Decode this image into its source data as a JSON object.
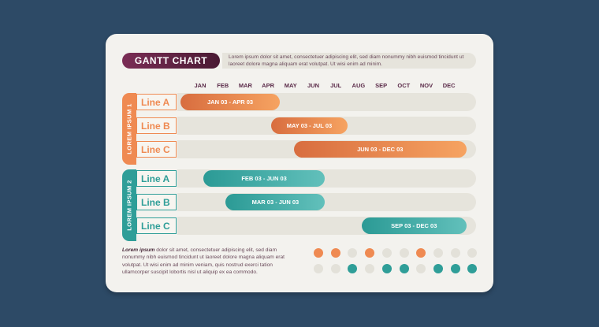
{
  "header": {
    "title": "GANTT CHART",
    "description": "Lorem ipsum dolor sit amet, consectetuer adipiscing elit, sed diam nonummy nibh euismod tincidunt ut laoreet dolore magna aliquam erat volutpat. Ut wisi enim ad minim."
  },
  "months": [
    "JAN",
    "FEB",
    "MAR",
    "APR",
    "MAY",
    "JUN",
    "JUL",
    "AUG",
    "SEP",
    "OCT",
    "NOV",
    "DEC"
  ],
  "groups": [
    {
      "label": "LOREM IPSUM 1",
      "color": "#ef8a52",
      "rows": [
        {
          "line": "Line A",
          "range": "JAN 03 - APR 03",
          "start_month": 1,
          "end_month": 4
        },
        {
          "line": "Line B",
          "range": "MAY 03 - JUL 03",
          "start_month": 5,
          "end_month": 7
        },
        {
          "line": "Line C",
          "range": "JUN 03 - DEC 03",
          "start_month": 6,
          "end_month": 12
        }
      ]
    },
    {
      "label": "LOREM IPSUM 2",
      "color": "#2f9e98",
      "rows": [
        {
          "line": "Line A",
          "range": "FEB 03 - JUN 03",
          "start_month": 2,
          "end_month": 6
        },
        {
          "line": "Line B",
          "range": "MAR 03 - JUN 03",
          "start_month": 3,
          "end_month": 6
        },
        {
          "line": "Line C",
          "range": "SEP 03 - DEC 03",
          "start_month": 9,
          "end_month": 12
        }
      ]
    }
  ],
  "footer": {
    "lead": "Lorem ipsum",
    "text": " dolor sit amet, consectetuer adipiscing elit, sed diam nonummy nibh euismod tincidunt ut laoreet dolore magna aliquam erat volutpat. Ut wisi enim ad minim veniam, quis nostrud exerci tation ullamcorper suscipit lobortis nisl ut aliquip ex ea commodo."
  },
  "dots": {
    "row1": [
      "orange",
      "orange",
      "empty",
      "orange",
      "empty",
      "empty",
      "orange",
      "empty",
      "empty",
      "empty"
    ],
    "row2": [
      "empty",
      "empty",
      "teal",
      "empty",
      "teal",
      "teal",
      "empty",
      "teal",
      "teal",
      "teal"
    ]
  },
  "colors": {
    "orange": "#ef8a52",
    "teal": "#2f9e98",
    "empty": "#e3e1d9",
    "title_pill": "#5e2241",
    "month_text": "#5a2a48"
  }
}
